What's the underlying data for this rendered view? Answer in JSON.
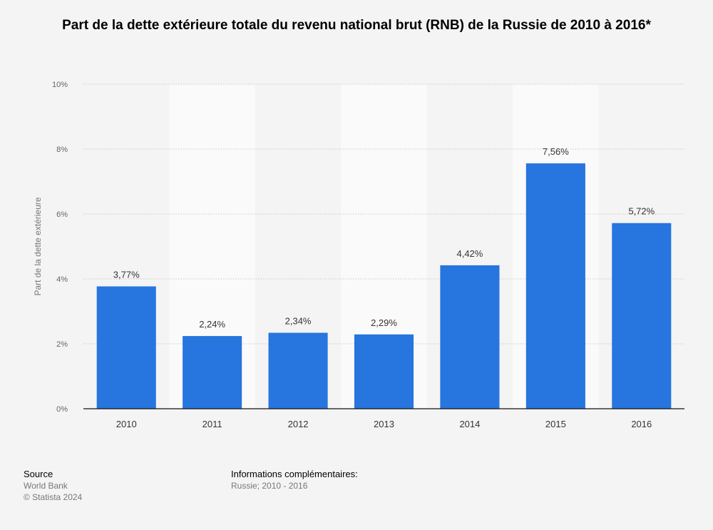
{
  "chart_data": {
    "type": "bar",
    "title": "Part de la dette extérieure totale du revenu national brut (RNB) de la Russie de 2010 à 2016*",
    "ylabel": "Part de la dette extérieure",
    "xlabel": "",
    "categories": [
      "2010",
      "2011",
      "2012",
      "2013",
      "2014",
      "2015",
      "2016"
    ],
    "values": [
      3.77,
      2.24,
      2.34,
      2.29,
      4.42,
      7.56,
      5.72
    ],
    "value_labels": [
      "3,77%",
      "2,24%",
      "2,34%",
      "2,29%",
      "4,42%",
      "7,56%",
      "5,72%"
    ],
    "ylim": [
      0,
      10
    ],
    "yticks": [
      0,
      2,
      4,
      6,
      8,
      10
    ],
    "ytick_labels": [
      "0%",
      "2%",
      "4%",
      "6%",
      "8%",
      "10%"
    ],
    "grid": true,
    "bar_color": "#2775de"
  },
  "footer": {
    "source_heading": "Source",
    "source_lines": [
      "World Bank",
      "© Statista 2024"
    ],
    "info_heading": "Informations complémentaires:",
    "info_text": "Russie; 2010 - 2016"
  }
}
